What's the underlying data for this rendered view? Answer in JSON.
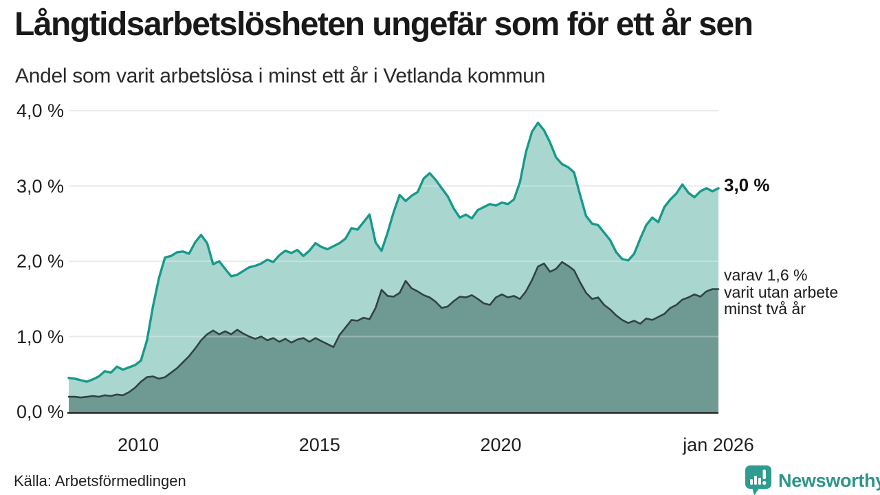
{
  "header": {
    "title": "Långtidsarbetslösheten ungefär som för ett år sen",
    "subtitle": "Andel som varit arbetslösa i minst ett år i Vetlanda kommun"
  },
  "annotations": {
    "total_end_label": "3,0 %",
    "secondary_line1": "varav 1,6 %",
    "secondary_line2": "varit utan arbete",
    "secondary_line3": "minst två år"
  },
  "footer": {
    "source": "Källa: Arbetsförmedlingen",
    "brand_name": "Newsworthy",
    "brand_icon": "bar-chart-speech-bubble-icon"
  },
  "colors": {
    "total_line": "#17998b",
    "total_fill": "#a9d7d0",
    "secondary_line": "#31433f",
    "secondary_fill": "#6f9a93",
    "gridline": "#e1e2e6",
    "axis": "#1a1a1a",
    "brand_teal": "#2d9489",
    "text": "#1f1f1f"
  },
  "chart_data": {
    "type": "area",
    "title": "Långtidsarbetslösheten ungefär som för ett år sen",
    "subtitle": "Andel som varit arbetslösa i minst ett år i Vetlanda kommun",
    "unit": "%",
    "ylim": [
      0,
      4
    ],
    "grid": true,
    "x_start": 2008.083,
    "x_end": 2026.0,
    "x_ticks": [
      {
        "label": "2010",
        "year": 2010
      },
      {
        "label": "2015",
        "year": 2015
      },
      {
        "label": "2020",
        "year": 2020
      },
      {
        "label": "jan 2026",
        "year": 2026
      }
    ],
    "y_ticks": [
      {
        "label": "0,0 %",
        "value": 0
      },
      {
        "label": "1,0 %",
        "value": 1
      },
      {
        "label": "2,0 %",
        "value": 2
      },
      {
        "label": "3,0 %",
        "value": 3
      },
      {
        "label": "4,0 %",
        "value": 4
      }
    ],
    "series": [
      {
        "name": "Arbetslösa minst ett år",
        "end_label": "3,0 %",
        "end_value": 3.0,
        "color": "#17998b",
        "fill": "#a9d7d0",
        "values": [
          0.45,
          0.44,
          0.42,
          0.4,
          0.43,
          0.47,
          0.54,
          0.52,
          0.6,
          0.56,
          0.59,
          0.62,
          0.68,
          0.95,
          1.4,
          1.78,
          2.05,
          2.07,
          2.12,
          2.13,
          2.1,
          2.25,
          2.35,
          2.24,
          1.96,
          2.0,
          1.9,
          1.8,
          1.82,
          1.87,
          1.92,
          1.94,
          1.97,
          2.02,
          1.99,
          2.08,
          2.14,
          2.11,
          2.15,
          2.07,
          2.14,
          2.24,
          2.19,
          2.16,
          2.2,
          2.24,
          2.3,
          2.44,
          2.42,
          2.52,
          2.62,
          2.25,
          2.14,
          2.38,
          2.65,
          2.88,
          2.8,
          2.87,
          2.92,
          3.1,
          3.17,
          3.08,
          2.97,
          2.86,
          2.7,
          2.58,
          2.62,
          2.57,
          2.68,
          2.72,
          2.76,
          2.74,
          2.78,
          2.76,
          2.82,
          3.05,
          3.45,
          3.72,
          3.84,
          3.74,
          3.58,
          3.38,
          3.29,
          3.25,
          3.18,
          2.88,
          2.6,
          2.5,
          2.48,
          2.38,
          2.28,
          2.12,
          2.03,
          2.01,
          2.1,
          2.3,
          2.48,
          2.58,
          2.52,
          2.72,
          2.82,
          2.9,
          3.02,
          2.91,
          2.85,
          2.93,
          2.97,
          2.93,
          2.97
        ]
      },
      {
        "name": "varav utan arbete minst två år",
        "end_label": "varav 1,6 % varit utan arbete minst två år",
        "end_value": 1.6,
        "color": "#31433f",
        "fill": "#6f9a93",
        "values": [
          0.2,
          0.2,
          0.19,
          0.2,
          0.21,
          0.2,
          0.22,
          0.21,
          0.23,
          0.22,
          0.26,
          0.32,
          0.4,
          0.46,
          0.47,
          0.44,
          0.46,
          0.52,
          0.58,
          0.66,
          0.74,
          0.84,
          0.95,
          1.03,
          1.08,
          1.03,
          1.07,
          1.03,
          1.09,
          1.04,
          1.0,
          0.97,
          1.0,
          0.95,
          0.98,
          0.93,
          0.97,
          0.92,
          0.96,
          0.98,
          0.93,
          0.98,
          0.94,
          0.9,
          0.86,
          1.02,
          1.12,
          1.22,
          1.21,
          1.25,
          1.23,
          1.38,
          1.62,
          1.54,
          1.53,
          1.58,
          1.74,
          1.64,
          1.6,
          1.55,
          1.52,
          1.46,
          1.38,
          1.4,
          1.47,
          1.53,
          1.52,
          1.55,
          1.5,
          1.44,
          1.42,
          1.52,
          1.56,
          1.52,
          1.54,
          1.5,
          1.6,
          1.75,
          1.93,
          1.97,
          1.86,
          1.9,
          1.99,
          1.94,
          1.88,
          1.72,
          1.58,
          1.5,
          1.52,
          1.42,
          1.36,
          1.28,
          1.22,
          1.18,
          1.21,
          1.17,
          1.24,
          1.22,
          1.26,
          1.3,
          1.38,
          1.42,
          1.49,
          1.52,
          1.56,
          1.53,
          1.6,
          1.63,
          1.63
        ]
      }
    ]
  }
}
